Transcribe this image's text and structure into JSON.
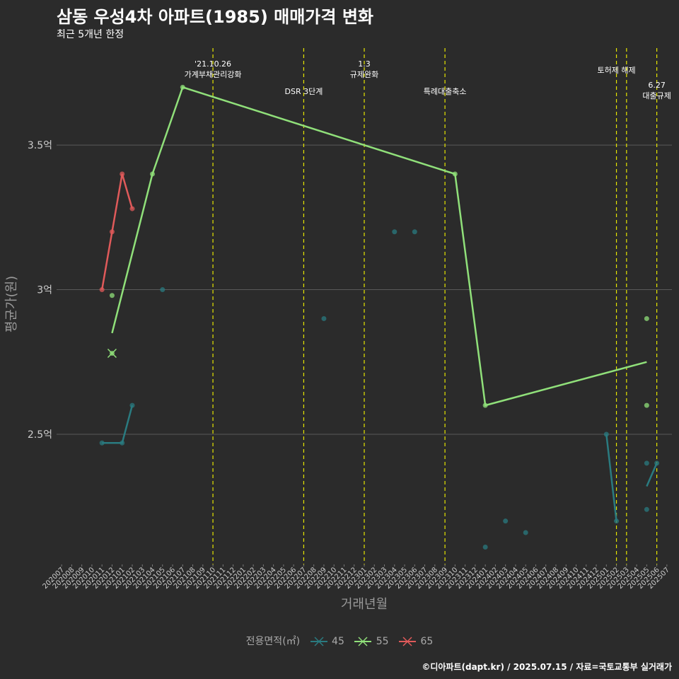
{
  "header": {
    "title": "삼동 우성4차 아파트(1985) 매매가격 변화",
    "subtitle": "최근 5개년 한정"
  },
  "caption": "©디아파트(dapt.kr) / 2025.07.15 / 자료=국토교통부 실거래가",
  "chart_data": {
    "type": "line",
    "title": "삼동 우성4차 아파트(1985) 매매가격 변화",
    "subtitle": "최근 5개년 한정",
    "xlabel": "거래년월",
    "ylabel": "평균가(원)",
    "ylim": [
      2.05,
      3.85
    ],
    "yticks": [
      {
        "value": 2.5,
        "label": "2.5억"
      },
      {
        "value": 3.0,
        "label": "3억"
      },
      {
        "value": 3.5,
        "label": "3.5억"
      }
    ],
    "categories": [
      "202007",
      "202008",
      "202009",
      "202010",
      "202011",
      "202012",
      "202101",
      "202102",
      "202103",
      "202104",
      "202105",
      "202106",
      "202107",
      "202108",
      "202109",
      "202110",
      "202111",
      "202112",
      "202201",
      "202202",
      "202203",
      "202204",
      "202205",
      "202206",
      "202207",
      "202208",
      "202209",
      "202210",
      "202211",
      "202212",
      "202301",
      "202302",
      "202303",
      "202304",
      "202305",
      "202306",
      "202307",
      "202308",
      "202309",
      "202310",
      "202311",
      "202312",
      "202401",
      "202402",
      "202403",
      "202404",
      "202405",
      "202406",
      "202407",
      "202408",
      "202409",
      "202410",
      "202411",
      "202412",
      "202501",
      "202502",
      "202503",
      "202504",
      "202505",
      "202506",
      "202507"
    ],
    "legend_title": "전용면적(㎡)",
    "series": [
      {
        "name": "45",
        "color": "#2a7b80",
        "line": [
          {
            "x": "202011",
            "y": 2.47
          },
          {
            "x": "202101",
            "y": 2.47
          },
          {
            "x": "202102",
            "y": 2.6
          }
        ],
        "line2": [
          {
            "x": "202501",
            "y": 2.5
          },
          {
            "x": "202502",
            "y": 2.2
          }
        ],
        "line3": [
          {
            "x": "202505",
            "y": 2.32
          },
          {
            "x": "202506",
            "y": 2.4
          }
        ],
        "points": [
          {
            "x": "202011",
            "y": 2.47
          },
          {
            "x": "202101",
            "y": 2.47
          },
          {
            "x": "202102",
            "y": 2.6
          },
          {
            "x": "202105",
            "y": 3.0
          },
          {
            "x": "202209",
            "y": 2.9
          },
          {
            "x": "202304",
            "y": 3.2
          },
          {
            "x": "202306",
            "y": 3.2
          },
          {
            "x": "202401",
            "y": 2.11
          },
          {
            "x": "202403",
            "y": 2.2
          },
          {
            "x": "202405",
            "y": 2.16
          },
          {
            "x": "202501",
            "y": 2.5
          },
          {
            "x": "202502",
            "y": 2.2
          },
          {
            "x": "202505",
            "y": 2.4
          },
          {
            "x": "202505",
            "y": 2.24
          },
          {
            "x": "202506",
            "y": 2.4
          }
        ]
      },
      {
        "name": "55",
        "color": "#90e07a",
        "line": [
          {
            "x": "202012",
            "y": 2.85
          },
          {
            "x": "202104",
            "y": 3.4
          },
          {
            "x": "202107",
            "y": 3.7
          },
          {
            "x": "202310",
            "y": 3.4
          },
          {
            "x": "202401",
            "y": 2.6
          },
          {
            "x": "202505",
            "y": 2.75
          }
        ],
        "points": [
          {
            "x": "202012",
            "y": 2.98
          },
          {
            "x": "202012",
            "y": 2.78
          },
          {
            "x": "202104",
            "y": 3.4
          },
          {
            "x": "202107",
            "y": 3.7
          },
          {
            "x": "202310",
            "y": 3.4
          },
          {
            "x": "202401",
            "y": 2.6
          },
          {
            "x": "202505",
            "y": 2.9
          },
          {
            "x": "202505",
            "y": 2.6
          }
        ]
      },
      {
        "name": "65",
        "color": "#e05a5a",
        "line": [
          {
            "x": "202011",
            "y": 3.0
          },
          {
            "x": "202012",
            "y": 3.2
          },
          {
            "x": "202101",
            "y": 3.4
          },
          {
            "x": "202102",
            "y": 3.28
          }
        ],
        "points": [
          {
            "x": "202011",
            "y": 3.0
          },
          {
            "x": "202012",
            "y": 3.2
          },
          {
            "x": "202101",
            "y": 3.4
          },
          {
            "x": "202102",
            "y": 3.28
          }
        ]
      }
    ],
    "annotations": [
      {
        "x": "202110",
        "lines": [
          "'21.10.26",
          "가계부채관리강화"
        ],
        "tier": "top"
      },
      {
        "x": "202207",
        "lines": [
          "DSR 3단계"
        ],
        "tier": "mid"
      },
      {
        "x": "202301",
        "lines": [
          "1.3",
          "규제완화"
        ],
        "tier": "top"
      },
      {
        "x": "202309",
        "lines": [
          "특례대출축소"
        ],
        "tier": "mid"
      },
      {
        "x": "202502",
        "lines": [
          "토허제 해제"
        ],
        "tier": "top2"
      },
      {
        "x": "202503",
        "lines": [],
        "tier": "none"
      },
      {
        "x": "202506",
        "lines": [
          "6.27",
          "대출규제"
        ],
        "tier": "low"
      }
    ]
  },
  "legend": {
    "title": "전용면적(㎡)",
    "items": [
      {
        "label": "45",
        "color": "#2a7b80"
      },
      {
        "label": "55",
        "color": "#90e07a"
      },
      {
        "label": "65",
        "color": "#e05a5a"
      }
    ]
  }
}
